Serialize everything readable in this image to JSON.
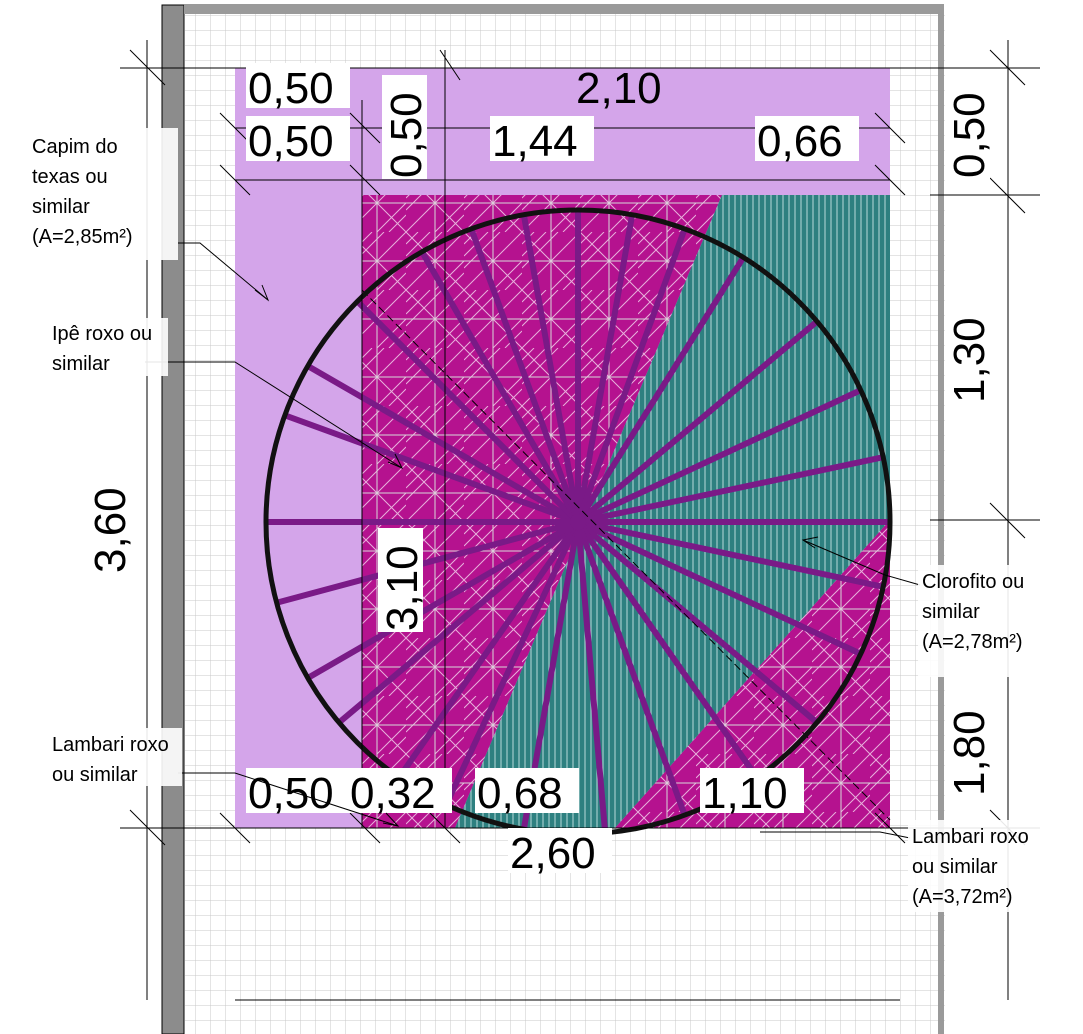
{
  "drawing": {
    "dimensions": {
      "top_total": "2,10",
      "top_left_a": "0,50",
      "top_left_b": "0,50",
      "top_vertical": "0,50",
      "top_mid": "1,44",
      "top_right": "0,66",
      "right_top": "0,50",
      "right_mid": "1,30",
      "right_bottom": "1,80",
      "left_total": "3,60",
      "inner_vertical": "3,10",
      "bottom_a": "0,50",
      "bottom_b": "0,32",
      "bottom_c": "0,68",
      "bottom_d": "1,10",
      "bottom_total": "2,60"
    },
    "labels": {
      "capim": [
        "Capim do",
        "texas ou",
        "similar",
        "(A=2,85m²)"
      ],
      "ipe": [
        "Ipê roxo ou",
        "similar"
      ],
      "lambari_left": [
        "Lambari roxo",
        "ou similar"
      ],
      "clorofito": [
        "Clorofito ou",
        "similar",
        "(A=2,78m²)"
      ],
      "lambari_right": [
        "Lambari roxo",
        "ou similar",
        "(A=3,72m²)"
      ]
    },
    "colors": {
      "capim": "#d4a5ea",
      "lambari": "#b5128f",
      "clorofito": "#2e8080",
      "tree": "#7a1a87",
      "wall": "#8c8c8c",
      "grid": "#c8c8c8"
    }
  }
}
